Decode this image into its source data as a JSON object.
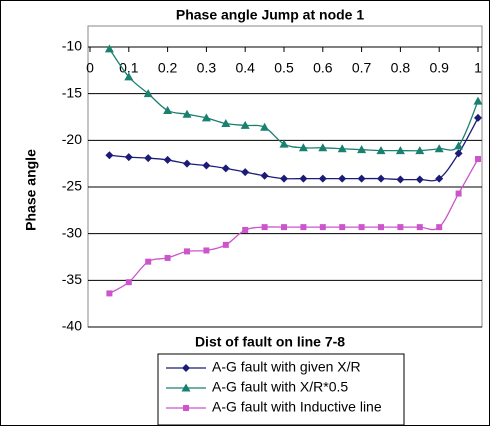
{
  "chart_data": {
    "type": "line",
    "title": "Phase angle Jump at node 1",
    "x_label": "Dist of fault on line 7-8",
    "y_label": "Phase angle",
    "x": [
      0.05,
      0.1,
      0.15,
      0.2,
      0.25,
      0.3,
      0.35,
      0.4,
      0.45,
      0.5,
      0.55,
      0.6,
      0.65,
      0.7,
      0.75,
      0.8,
      0.85,
      0.9,
      0.95,
      1.0
    ],
    "series": [
      {
        "name": "A-G fault with given X/R",
        "color": "#1c1c78",
        "marker": "diamond",
        "values": [
          -21.6,
          -21.8,
          -21.9,
          -22.1,
          -22.5,
          -22.7,
          -23.0,
          -23.4,
          -23.8,
          -24.1,
          -24.1,
          -24.1,
          -24.1,
          -24.1,
          -24.1,
          -24.2,
          -24.2,
          -24.1,
          -21.4,
          -17.6
        ]
      },
      {
        "name": "A-G fault with X/R*0.5",
        "color": "#1a8070",
        "marker": "triangle",
        "values": [
          -10.2,
          -13.2,
          -15.0,
          -16.8,
          -17.2,
          -17.6,
          -18.2,
          -18.4,
          -18.6,
          -20.4,
          -20.8,
          -20.8,
          -20.9,
          -21.0,
          -21.1,
          -21.1,
          -21.1,
          -20.9,
          -20.6,
          -15.8
        ]
      },
      {
        "name": "A-G fault with Inductive line",
        "color": "#cc55cc",
        "marker": "square",
        "values": [
          -36.4,
          -35.2,
          -33.0,
          -32.6,
          -31.9,
          -31.8,
          -31.2,
          -29.6,
          -29.3,
          -29.3,
          -29.3,
          -29.3,
          -29.3,
          -29.3,
          -29.3,
          -29.3,
          -29.3,
          -29.3,
          -25.7,
          -22.0
        ]
      }
    ],
    "xlim": [
      0,
      1
    ],
    "xticks": [
      0,
      0.1,
      0.2,
      0.3,
      0.4,
      0.5,
      0.6,
      0.7,
      0.8,
      0.9,
      1
    ],
    "ylim": [
      -40,
      -10
    ],
    "yticks": [
      -10,
      -15,
      -20,
      -25,
      -30,
      -35,
      -40
    ],
    "grid": true,
    "legend": "bottom"
  }
}
